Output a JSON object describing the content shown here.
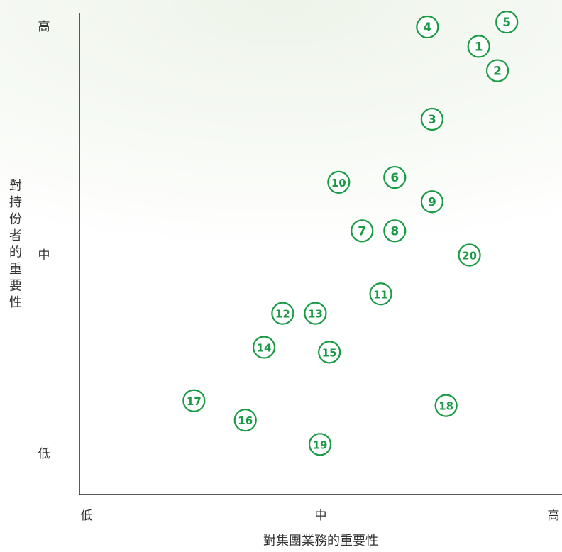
{
  "chart_data": {
    "type": "scatter",
    "xlabel": "對集團業務的重要性",
    "ylabel": "對持份者的重要性",
    "x_ticks": [
      {
        "value": 0,
        "label": "低"
      },
      {
        "value": 50,
        "label": "中"
      },
      {
        "value": 100,
        "label": "高"
      }
    ],
    "y_ticks": [
      {
        "value": 10,
        "label": "低"
      },
      {
        "value": 52,
        "label": "中"
      },
      {
        "value": 98,
        "label": "高"
      }
    ],
    "xlim": [
      0,
      100
    ],
    "ylim": [
      0,
      100
    ],
    "grid": false,
    "marker_color": "#1a9a44",
    "points": [
      {
        "label": "1",
        "x": 84,
        "y": 94
      },
      {
        "label": "2",
        "x": 88,
        "y": 89
      },
      {
        "label": "3",
        "x": 74,
        "y": 79
      },
      {
        "label": "4",
        "x": 73,
        "y": 98
      },
      {
        "label": "5",
        "x": 90,
        "y": 99
      },
      {
        "label": "6",
        "x": 66,
        "y": 67
      },
      {
        "label": "7",
        "x": 59,
        "y": 56
      },
      {
        "label": "8",
        "x": 66,
        "y": 56
      },
      {
        "label": "9",
        "x": 74,
        "y": 62
      },
      {
        "label": "10",
        "x": 54,
        "y": 66
      },
      {
        "label": "11",
        "x": 63,
        "y": 43
      },
      {
        "label": "12",
        "x": 42,
        "y": 39
      },
      {
        "label": "13",
        "x": 49,
        "y": 39
      },
      {
        "label": "14",
        "x": 38,
        "y": 32
      },
      {
        "label": "15",
        "x": 52,
        "y": 31
      },
      {
        "label": "16",
        "x": 34,
        "y": 17
      },
      {
        "label": "17",
        "x": 23,
        "y": 21
      },
      {
        "label": "18",
        "x": 77,
        "y": 20
      },
      {
        "label": "19",
        "x": 50,
        "y": 12
      },
      {
        "label": "20",
        "x": 82,
        "y": 51
      }
    ]
  }
}
